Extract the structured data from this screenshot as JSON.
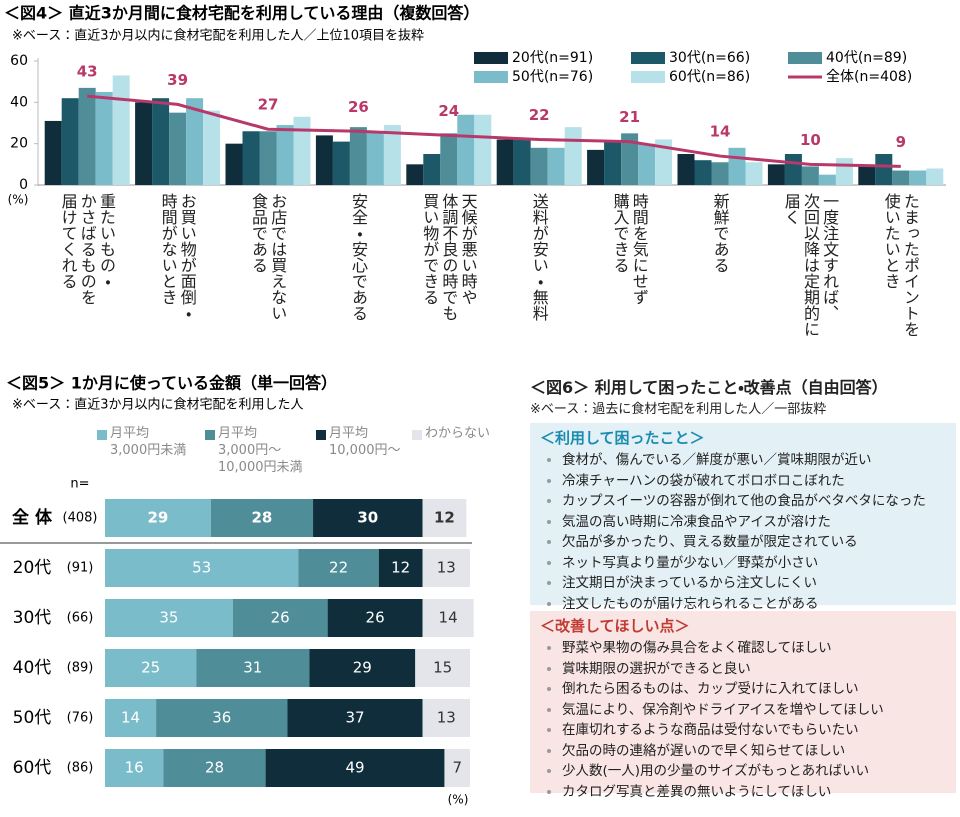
{
  "chart_data": [
    {
      "type": "bar",
      "title": "＜図4＞ 直近3か月間に食材宅配を利用している理由（複数回答）",
      "subtitle": "※ベース：直近3か月以内に食材宅配を利用した人／上位10項目を抜粋",
      "y_unit": "(%)",
      "categories": [
        "重たいもの・\nかさばるものを\n届けてくれる",
        "お買い物が面倒・\n時間がないとき",
        "お店では買えない\n食品である",
        "安全・安心である",
        "天候が悪い時や\n体調不良の時でも\n買い物ができる",
        "送料が安い・無料",
        "時間を気にせず\n購入できる",
        "新鮮である",
        "一度注文すれば、\n次回以降は定期的に\n届く",
        "たまったポイントを\n使いたいとき"
      ],
      "series": [
        {
          "name": "20代(n=91)",
          "color": "#0f2d3b",
          "values": [
            31,
            40,
            20,
            24,
            10,
            22,
            17,
            15,
            10,
            9
          ]
        },
        {
          "name": "30代(n=66)",
          "color": "#1c5868",
          "values": [
            42,
            42,
            26,
            21,
            15,
            22,
            21,
            12,
            15,
            15
          ]
        },
        {
          "name": "40代(n=89)",
          "color": "#4f8e99",
          "values": [
            47,
            35,
            26,
            28,
            25,
            18,
            25,
            11,
            9,
            7
          ]
        },
        {
          "name": "50代(n=76)",
          "color": "#7bbccb",
          "values": [
            45,
            42,
            29,
            26,
            34,
            18,
            20,
            18,
            5,
            7
          ]
        },
        {
          "name": "60代(n=86)",
          "color": "#b6e1e9",
          "values": [
            53,
            36,
            33,
            29,
            34,
            28,
            22,
            11,
            13,
            8
          ]
        },
        {
          "name": "全体(n=408)",
          "color": "#b8386a",
          "type": "line",
          "values": [
            43,
            39,
            27,
            26,
            24,
            22,
            21,
            14,
            10,
            9
          ]
        }
      ],
      "ylim": [
        0,
        60
      ],
      "yticks": [
        0,
        20,
        40,
        60
      ],
      "grid": false,
      "legend": "top-right"
    },
    {
      "type": "stacked_barh",
      "title": "＜図5＞ 1か月に使っている金額（単一回答）",
      "subtitle": "※ベース：直近3か月以内に食材宅配を利用した人",
      "unit": "(%)",
      "n_header": "n=",
      "categories": [
        "全 体",
        "20代",
        "30代",
        "40代",
        "50代",
        "60代"
      ],
      "n_labels": [
        "(408)",
        "(91)",
        "(66)",
        "(89)",
        "(76)",
        "(86)"
      ],
      "series": [
        {
          "name": "月平均\n3,000円未満",
          "color": "#7bbccb",
          "values": [
            29,
            53,
            35,
            25,
            14,
            16
          ]
        },
        {
          "name": "月平均\n3,000円～\n10,000円未満",
          "color": "#4f8e99",
          "values": [
            28,
            22,
            26,
            31,
            36,
            28
          ]
        },
        {
          "name": "月平均\n10,000円～",
          "color": "#0f2d3b",
          "values": [
            30,
            12,
            26,
            29,
            37,
            49
          ]
        },
        {
          "name": "わからない",
          "color": "#e3e5ea",
          "values": [
            12,
            13,
            14,
            15,
            13,
            7
          ]
        }
      ],
      "xlim": [
        0,
        100
      ]
    }
  ],
  "panel": {
    "title": "＜図6＞ 利用して困ったこと・改善点（自由回答）",
    "subtitle": "※ベース：過去に食材宅配を利用した人／一部抜粋",
    "sections": [
      {
        "heading": "＜利用して困ったこと＞",
        "items": [
          "食材が、傷んでいる／鮮度が悪い／賞味期限が近い",
          "冷凍チャーハンの袋が破れてボロボロこぼれた",
          "カップスイーツの容器が倒れて他の食品がベタベタになった",
          "気温の高い時期に冷凍食品やアイスが溶けた",
          "欠品が多かったり、買える数量が限定されている",
          "ネット写真より量が少ない／野菜が小さい",
          "注文期日が決まっているから注文しにくい",
          "注文したものが届け忘れられることがある"
        ]
      },
      {
        "heading": "＜改善してほしい点＞",
        "items": [
          "野菜や果物の傷み具合をよく確認してほしい",
          "賞味期限の選択ができると良い",
          "倒れたら困るものは、カップ受けに入れてほしい",
          "気温により、保冷剤やドライアイスを増やしてほしい",
          "在庫切れするような商品は受付ないでもらいたい",
          "欠品の時の連絡が遅いので早く知らせてほしい",
          "少人数(一人)用の少量のサイズがもっとあればいい",
          "カタログ写真と差異の無いようにしてほしい"
        ]
      }
    ]
  }
}
